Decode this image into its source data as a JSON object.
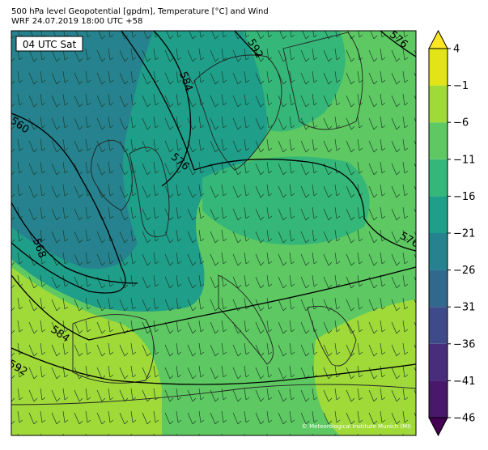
{
  "header": {
    "title": "500 hPa level Geopotential [gpdm], Temperature [°C] and Wind",
    "subtitle": "WRF 24.07.2019 18:00 UTC +58"
  },
  "map": {
    "time_label": "04 UTC Sat",
    "contour_labels": [
      576,
      592,
      584,
      560,
      576,
      568,
      576,
      584,
      592
    ],
    "credit": "© Meteorological Institute Munich (MI)"
  },
  "colorbar": {
    "ticks": [
      {
        "value": -46,
        "label": "−46"
      },
      {
        "value": -41,
        "label": "−41"
      },
      {
        "value": -36,
        "label": "−36"
      },
      {
        "value": -31,
        "label": "−31"
      },
      {
        "value": -26,
        "label": "−26"
      },
      {
        "value": -21,
        "label": "−21"
      },
      {
        "value": -16,
        "label": "−16"
      },
      {
        "value": -11,
        "label": "−11"
      },
      {
        "value": -6,
        "label": "−6"
      },
      {
        "value": -1,
        "label": "−1"
      },
      4
    ],
    "colors": [
      "#48186a",
      "#472d7b",
      "#3e4a89",
      "#31688e",
      "#26828e",
      "#1f9e89",
      "#35b779",
      "#5ec962",
      "#a0da39",
      "#e2e418"
    ],
    "extend_colors": [
      "#440154",
      "#fde725"
    ]
  }
}
